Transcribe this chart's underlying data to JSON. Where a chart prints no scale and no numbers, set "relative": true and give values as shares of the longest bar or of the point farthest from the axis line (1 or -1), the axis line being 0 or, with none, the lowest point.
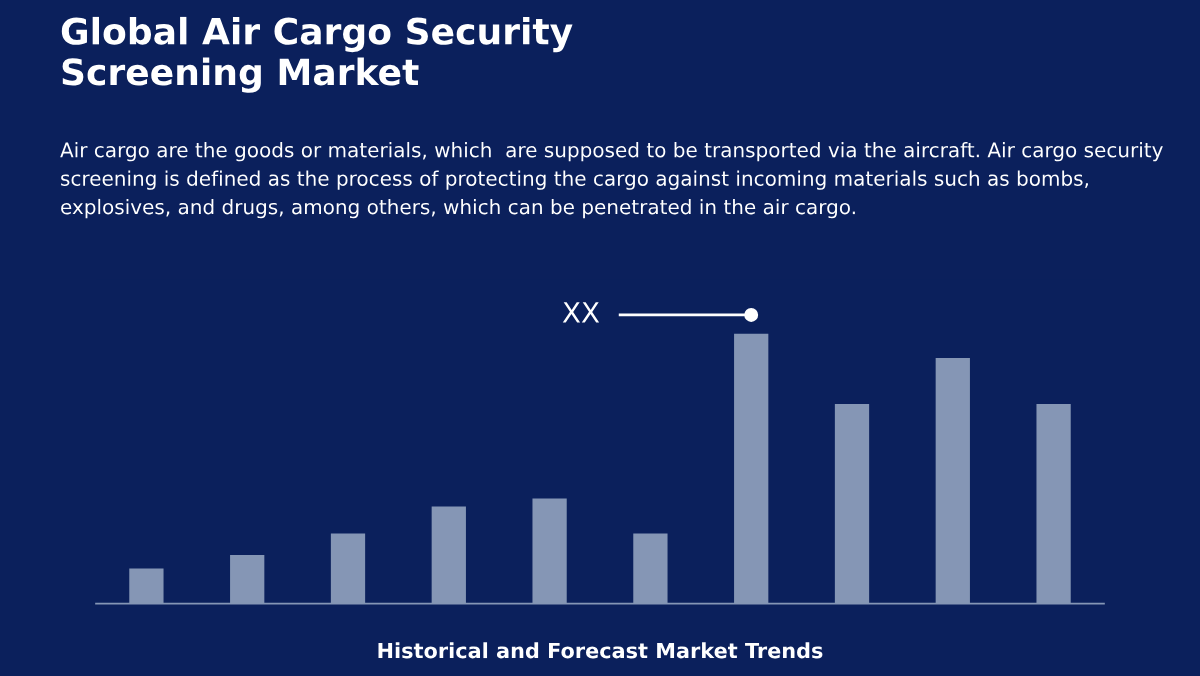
{
  "chart_data": {
    "type": "bar",
    "title": "Global Air Cargo Security\nScreening Market",
    "subtitle": "Air cargo are the goods or materials, which  are supposed to be transported via the aircraft. Air cargo security screening is defined as the process of protecting the cargo against incoming materials such as bombs, explosives, and drugs, among others, which can be penetrated in the air cargo.",
    "relative": true,
    "categories": [
      null,
      null,
      null,
      null,
      null,
      null,
      null,
      null,
      null,
      null
    ],
    "values": [
      0.13,
      0.18,
      0.26,
      0.36,
      0.39,
      0.26,
      1,
      0.74,
      0.91,
      0.74
    ],
    "color": "#8596b5",
    "annotations": [
      "XX",
      "Historical and Forecast Market Trends"
    ]
  }
}
